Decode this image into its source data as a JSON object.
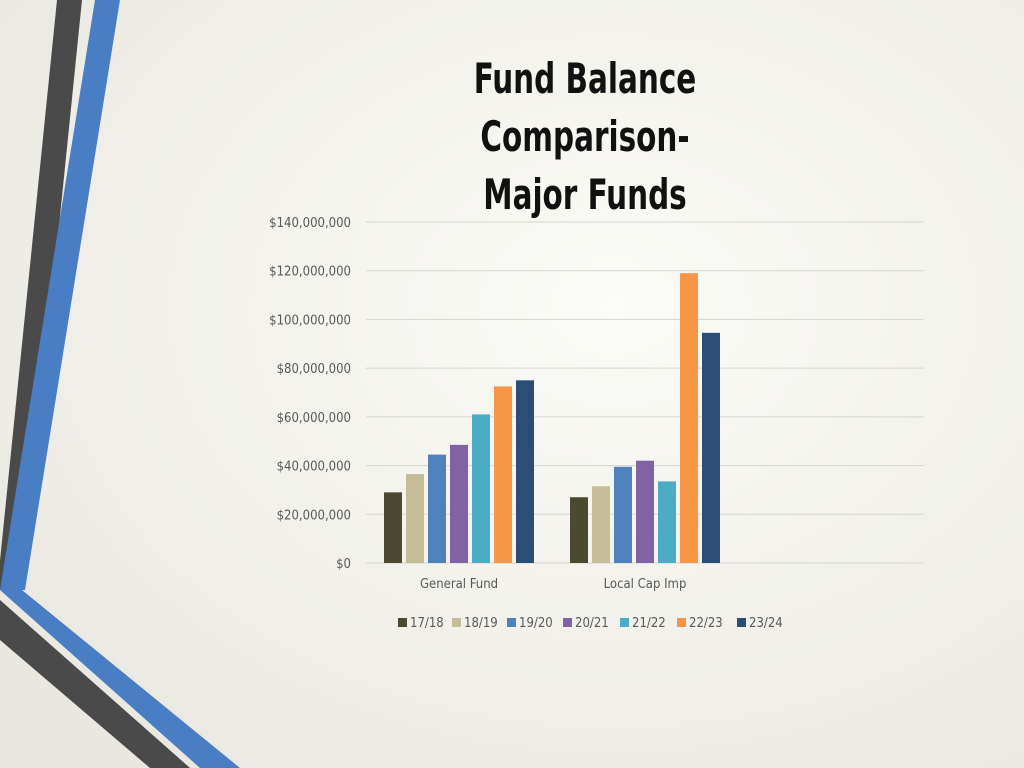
{
  "title_line1": "Fund Balance Comparison-",
  "title_line2": "Major Funds",
  "colors": {
    "deco_gray": "#4a4a4a",
    "deco_blue": "#4a7ec4",
    "grid": "#d6d6d0",
    "axis_text": "#595959"
  },
  "chart_data": {
    "type": "bar",
    "title": "Fund Balance Comparison- Major Funds",
    "xlabel": "",
    "ylabel": "",
    "categories": [
      "General Fund",
      "Local Cap Imp"
    ],
    "ylim": [
      0,
      140000000
    ],
    "yticks": [
      0,
      20000000,
      40000000,
      60000000,
      80000000,
      100000000,
      120000000,
      140000000
    ],
    "ytick_labels": [
      "$0",
      "$20,000,000",
      "$40,000,000",
      "$60,000,000",
      "$80,000,000",
      "$100,000,000",
      "$120,000,000",
      "$140,000,000"
    ],
    "grid": true,
    "legend_position": "bottom",
    "series": [
      {
        "name": "17/18",
        "color": "#4b4a30",
        "values": [
          29000000,
          27000000
        ]
      },
      {
        "name": "18/19",
        "color": "#c4bd97",
        "values": [
          36500000,
          31500000
        ]
      },
      {
        "name": "19/20",
        "color": "#4f81bd",
        "values": [
          44500000,
          39500000
        ]
      },
      {
        "name": "20/21",
        "color": "#8064a2",
        "values": [
          48500000,
          42000000
        ]
      },
      {
        "name": "21/22",
        "color": "#4bacc6",
        "values": [
          61000000,
          33500000
        ]
      },
      {
        "name": "22/23",
        "color": "#f79646",
        "values": [
          72500000,
          119000000
        ]
      },
      {
        "name": "23/24",
        "color": "#2c4d75",
        "values": [
          75000000,
          94500000
        ]
      }
    ]
  }
}
